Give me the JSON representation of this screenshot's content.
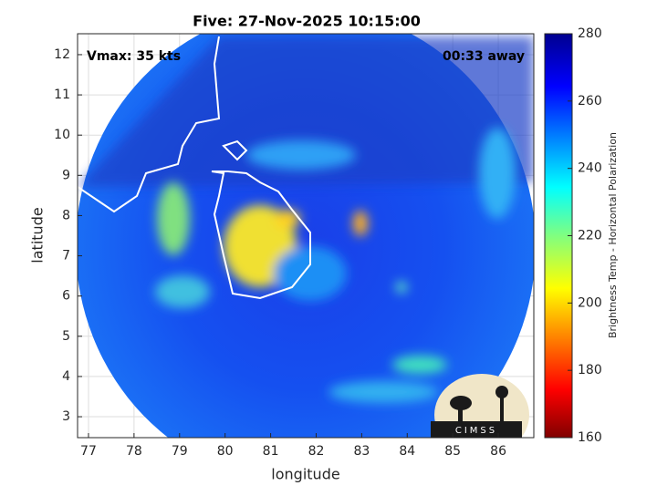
{
  "title": "Five: 27-Nov-2025 10:15:00",
  "annotations": {
    "vmax": "Vmax: 35 kts",
    "away": "00:33 away"
  },
  "axes": {
    "xlabel": "longitude",
    "ylabel": "latitude",
    "xlim": [
      76.76,
      86.78
    ],
    "ylim": [
      2.48,
      12.52
    ],
    "xticks": [
      77,
      78,
      79,
      80,
      81,
      82,
      83,
      84,
      85,
      86
    ],
    "yticks": [
      3,
      4,
      5,
      6,
      7,
      8,
      9,
      10,
      11,
      12
    ],
    "grid": true
  },
  "colorbar": {
    "label": "Brightness Temp - Horizontal Polarization",
    "lim": [
      160,
      280
    ],
    "ticks": [
      160,
      180,
      200,
      220,
      240,
      260,
      280
    ]
  },
  "logo": "CIMSS"
}
